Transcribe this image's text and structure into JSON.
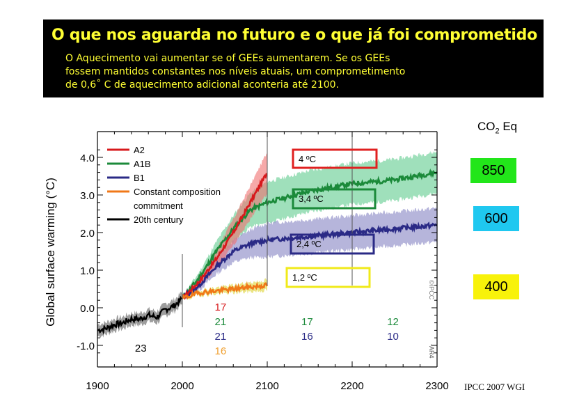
{
  "banner": {
    "title": "O que nos aguarda no futuro e o que já foi comprometido",
    "lines": [
      "O Aquecimento vai aumentar se of GEEs aumentarem.   Se os GEEs",
      "fossem mantidos constantes nos níveis atuais, um comprometimento",
      "de 0,6˚ C de aquecimento adicional aconteria até 2100."
    ]
  },
  "co2": {
    "label": "CO",
    "sub": "2",
    "suffix": " Eq",
    "boxes": [
      {
        "value": "850",
        "color": "#22e61a"
      },
      {
        "value": "600",
        "color": "#1fc8f0"
      },
      {
        "value": "400",
        "color": "#f8f20a"
      }
    ]
  },
  "source": "IPCC 2007 WGI",
  "chart_data": {
    "type": "line",
    "ylabel": "Global surface warming (°C)",
    "xlim": [
      1900,
      2300
    ],
    "ylim": [
      -1.3,
      4.6
    ],
    "xticks": [
      "1900",
      "2000",
      "2100",
      "2200",
      "2300"
    ],
    "yticks": [
      "-1.0",
      "0.0",
      "1.0",
      "2.0",
      "3.0",
      "4.0"
    ],
    "colors": {
      "A2": "#d7191c",
      "A1B": "#1b8a3a",
      "B1": "#2a2a86",
      "commit": "#f07818",
      "hist": "#000000"
    },
    "series": [
      {
        "name": "A2",
        "color": "#d7191c",
        "x": [
          2000,
          2020,
          2040,
          2060,
          2080,
          2100
        ],
        "y": [
          0.25,
          0.7,
          1.3,
          2.0,
          2.8,
          3.6
        ]
      },
      {
        "name": "A1B",
        "color": "#1b8a3a",
        "x": [
          2000,
          2020,
          2040,
          2060,
          2080,
          2100,
          2150,
          2200,
          2250,
          2300
        ],
        "y": [
          0.25,
          0.8,
          1.5,
          2.1,
          2.6,
          2.8,
          3.1,
          3.3,
          3.4,
          3.6
        ]
      },
      {
        "name": "B1",
        "color": "#2a2a86",
        "x": [
          2000,
          2020,
          2040,
          2060,
          2080,
          2100,
          2150,
          2200,
          2250,
          2300
        ],
        "y": [
          0.25,
          0.6,
          1.1,
          1.5,
          1.7,
          1.8,
          1.9,
          2.0,
          2.1,
          2.2
        ]
      },
      {
        "name": "Constant composition commitment",
        "color": "#f07818",
        "x": [
          2000,
          2020,
          2040,
          2060,
          2080,
          2100
        ],
        "y": [
          0.25,
          0.4,
          0.45,
          0.5,
          0.55,
          0.6
        ]
      },
      {
        "name": "20th century",
        "color": "#000000",
        "x": [
          1900,
          1910,
          1920,
          1930,
          1940,
          1950,
          1960,
          1970,
          1980,
          1990,
          2000
        ],
        "y": [
          -0.6,
          -0.55,
          -0.45,
          -0.4,
          -0.3,
          -0.3,
          -0.2,
          -0.25,
          -0.05,
          0.05,
          0.25
        ]
      }
    ],
    "legend": {
      "labels": [
        "A2",
        "A1B",
        "B1",
        "Constant composition",
        "commitment",
        "20th century"
      ],
      "placement": "top-left"
    },
    "annotations": [
      {
        "text": "4 ºC",
        "color": "#e02020",
        "x": 2150,
        "y": 3.95
      },
      {
        "text": "3,4 ºC",
        "color": "#1b8a3a",
        "x": 2150,
        "y": 2.9
      },
      {
        "text": "2,4 ºC",
        "color": "#2a2a86",
        "x": 2150,
        "y": 1.8
      },
      {
        "text": "1,2 ºC",
        "color": "#f0ea1a",
        "x": 2150,
        "y": 0.8
      }
    ],
    "model_counts": [
      {
        "text": "17",
        "color": "#d7191c",
        "x": 2045,
        "row": 0
      },
      {
        "text": "21",
        "color": "#1b8a3a",
        "x": 2045,
        "row": 1
      },
      {
        "text": "21",
        "color": "#2a2a86",
        "x": 2045,
        "row": 2
      },
      {
        "text": "16",
        "color": "#f0a030",
        "x": 2045,
        "row": 3
      },
      {
        "text": "17",
        "color": "#1b8a3a",
        "x": 2147,
        "row": 1
      },
      {
        "text": "16",
        "color": "#2a2a86",
        "x": 2147,
        "row": 2
      },
      {
        "text": "12",
        "color": "#1b8a3a",
        "x": 2248,
        "row": 1
      },
      {
        "text": "10",
        "color": "#2a2a86",
        "x": 2248,
        "row": 2
      },
      {
        "text": "23",
        "color": "#000000",
        "x": 1951,
        "row": 4
      }
    ],
    "side_marks": [
      "©IPCC",
      "-AR4"
    ]
  }
}
